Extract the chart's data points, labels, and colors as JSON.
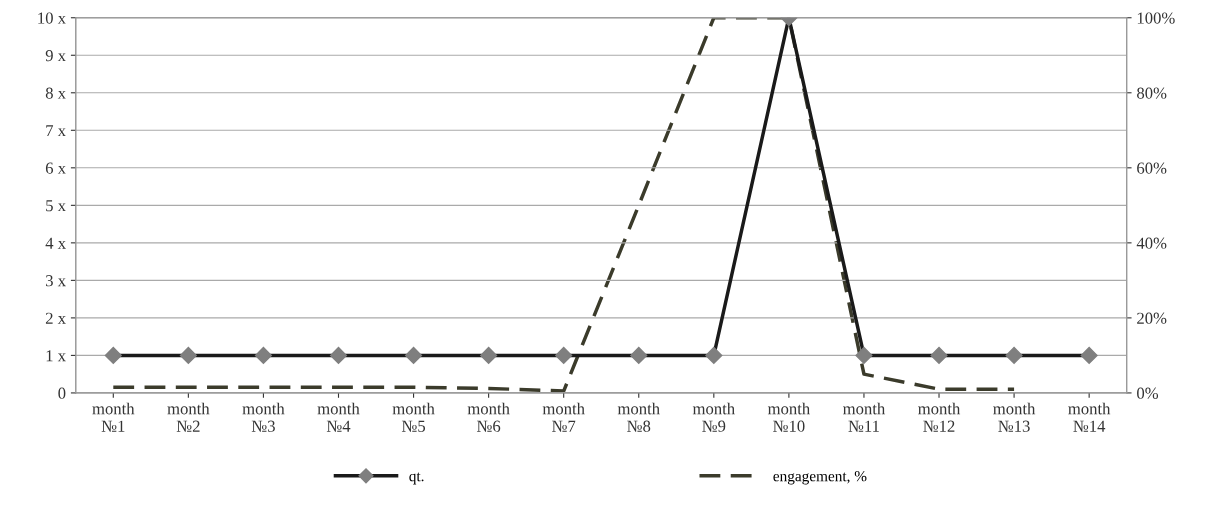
{
  "chart_data": {
    "type": "line",
    "categories": [
      "month\n№1",
      "month\n№2",
      "month\n№3",
      "month\n№4",
      "month\n№5",
      "month\n№6",
      "month\n№7",
      "month\n№8",
      "month\n№9",
      "month\n№10",
      "month\n№11",
      "month\n№12",
      "month\n№13",
      "month\n№14"
    ],
    "series": [
      {
        "name": "qt.",
        "color": "#1a1a1a",
        "marker": "diamond",
        "line_style": "solid",
        "values": [
          1,
          1,
          1,
          1,
          1,
          1,
          1,
          1,
          1,
          10,
          1,
          1,
          1,
          1
        ]
      },
      {
        "name": "engagement, %",
        "color": "#3b3b2b",
        "marker": "none",
        "line_style": "dashed",
        "axis": "y2",
        "values": [
          1.5,
          1.5,
          1.5,
          1.5,
          1.5,
          1.2,
          0.5,
          50,
          100,
          100,
          5,
          1,
          1,
          null
        ]
      }
    ],
    "ylim": [
      0,
      10
    ],
    "yticks": [
      0,
      {
        "value": 1,
        "label": "1 x"
      },
      {
        "value": 2,
        "label": "2 x"
      },
      {
        "value": 3,
        "label": "3 x"
      },
      {
        "value": 4,
        "label": "4 x"
      },
      {
        "value": 5,
        "label": "5 x"
      },
      {
        "value": 6,
        "label": "6 x"
      },
      {
        "value": 7,
        "label": "7 x"
      },
      {
        "value": 8,
        "label": "8 x"
      },
      {
        "value": 9,
        "label": "9 x"
      },
      {
        "value": 10,
        "label": "10 x"
      }
    ],
    "y2lim": [
      0,
      100
    ],
    "y2ticks": [
      {
        "value": 0,
        "label": "0%"
      },
      {
        "value": 20,
        "label": "20%"
      },
      {
        "value": 40,
        "label": "40%"
      },
      {
        "value": 60,
        "label": "60%"
      },
      {
        "value": 80,
        "label": "80%"
      },
      {
        "value": 100,
        "label": "100%"
      }
    ],
    "grid": "y",
    "legend": "bottom"
  }
}
